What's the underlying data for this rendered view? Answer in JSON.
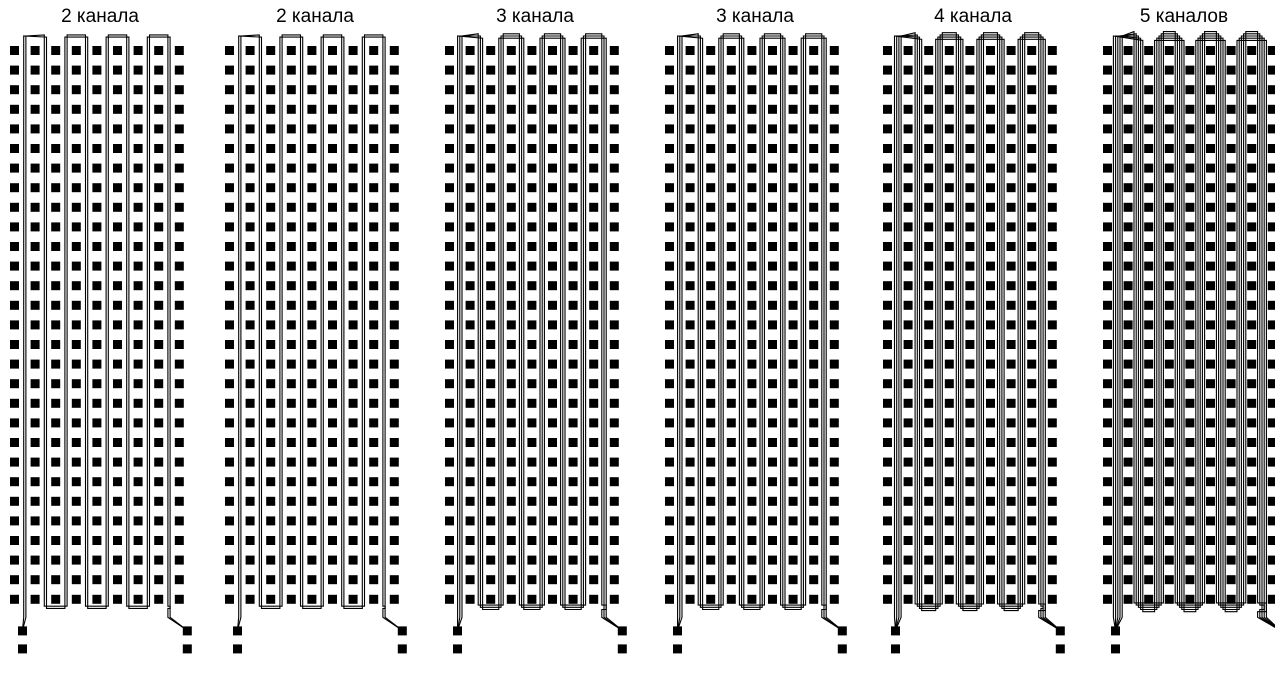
{
  "figure": {
    "background": "#ffffff",
    "pad_color": "#000000",
    "channel_color": "#000000",
    "panels": [
      {
        "title": "2 канала",
        "channels": 2,
        "loops": 4
      },
      {
        "title": "2 канала",
        "channels": 2,
        "loops": 4
      },
      {
        "title": "3 канала",
        "channels": 3,
        "loops": 4
      },
      {
        "title": "3 канала",
        "channels": 3,
        "loops": 4
      },
      {
        "title": "4 канала",
        "channels": 4,
        "loops": 4
      },
      {
        "title": "5 каналов",
        "channels": 5,
        "loops": 4
      }
    ]
  }
}
